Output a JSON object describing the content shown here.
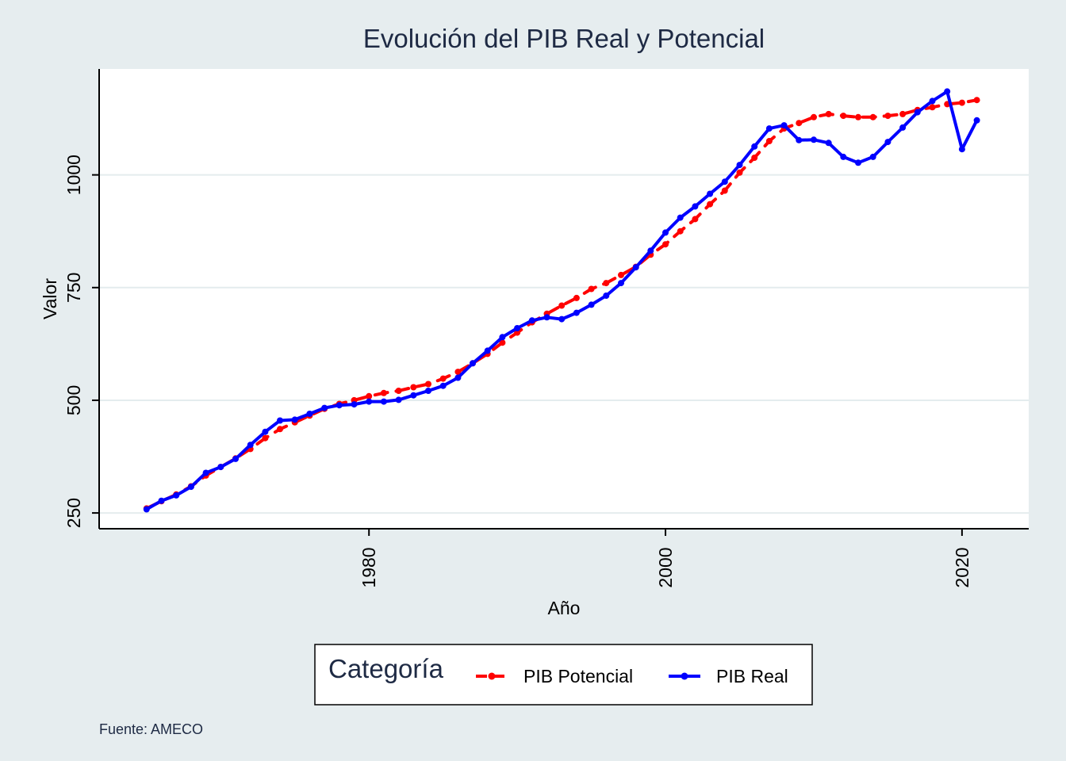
{
  "chart_data": {
    "type": "line",
    "title": "Evolución del PIB Real y Potencial",
    "xlabel": "Año",
    "ylabel": "Valor",
    "xticks": [
      1980,
      2000,
      2020
    ],
    "yticks": [
      250,
      500,
      750,
      1000
    ],
    "xlim": [
      1961.8,
      2024.5
    ],
    "ylim": [
      215,
      1235
    ],
    "grid": "horizontal",
    "legend_title": "Categoría",
    "legend_position": "bottom",
    "note": "Fuente: AMECO",
    "x": [
      1965,
      1966,
      1967,
      1968,
      1969,
      1970,
      1971,
      1972,
      1973,
      1974,
      1975,
      1976,
      1977,
      1978,
      1979,
      1980,
      1981,
      1982,
      1983,
      1984,
      1985,
      1986,
      1987,
      1988,
      1989,
      1990,
      1991,
      1992,
      1993,
      1994,
      1995,
      1996,
      1997,
      1998,
      1999,
      2000,
      2001,
      2002,
      2003,
      2004,
      2005,
      2006,
      2007,
      2008,
      2009,
      2010,
      2011,
      2012,
      2013,
      2014,
      2015,
      2016,
      2017,
      2018,
      2019,
      2020,
      2021
    ],
    "series": [
      {
        "name": "PIB Potencial",
        "color": "#ff0000",
        "style": "dashed",
        "values": [
          260,
          276,
          291,
          309,
          333,
          352,
          371,
          392,
          416,
          436,
          451,
          466,
          481,
          492,
          500,
          509,
          516,
          521,
          529,
          536,
          548,
          563,
          582,
          603,
          628,
          650,
          673,
          692,
          710,
          727,
          747,
          760,
          778,
          796,
          823,
          846,
          875,
          902,
          935,
          965,
          1005,
          1038,
          1075,
          1103,
          1115,
          1128,
          1135,
          1131,
          1128,
          1128,
          1131,
          1135,
          1144,
          1150,
          1157,
          1160,
          1166
        ],
        "points": "dot"
      },
      {
        "name": "PIB Real",
        "color": "#0000ff",
        "style": "solid",
        "values": [
          258,
          277,
          289,
          308,
          339,
          352,
          370,
          401,
          430,
          455,
          457,
          470,
          483,
          489,
          491,
          497,
          497,
          501,
          511,
          521,
          532,
          550,
          582,
          610,
          640,
          660,
          677,
          684,
          680,
          694,
          712,
          732,
          760,
          795,
          832,
          872,
          905,
          930,
          958,
          985,
          1022,
          1063,
          1103,
          1110,
          1077,
          1078,
          1071,
          1040,
          1027,
          1040,
          1073,
          1105,
          1139,
          1164,
          1185,
          1057,
          1121
        ],
        "points": "dot"
      }
    ]
  }
}
